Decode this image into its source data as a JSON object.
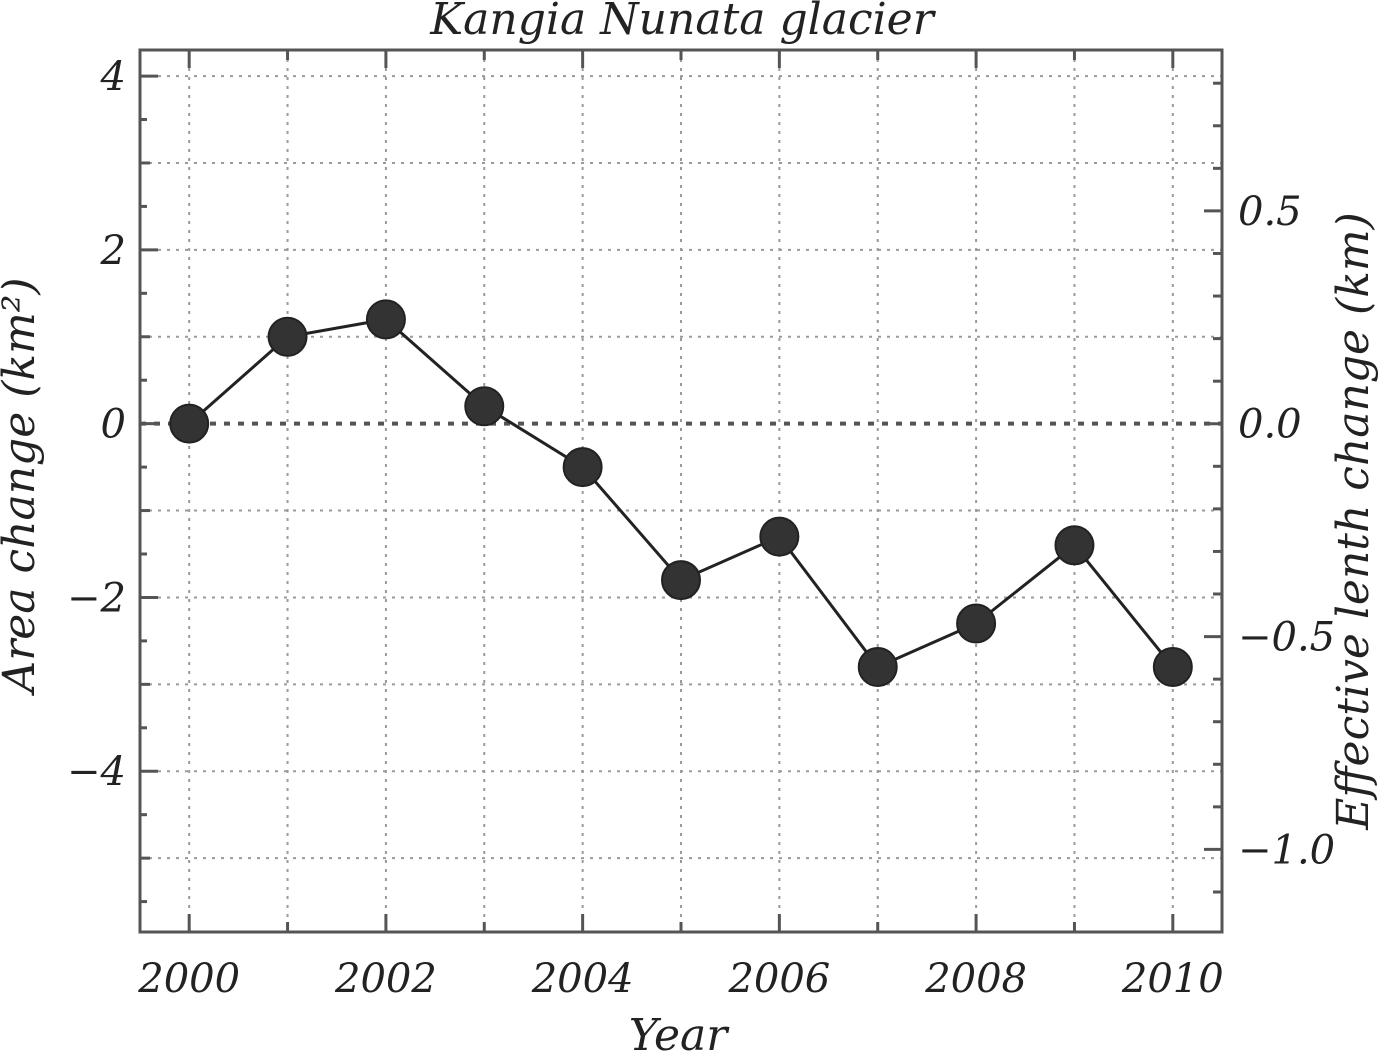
{
  "chart_data": {
    "type": "line",
    "title": "Kangia Nunata glacier",
    "xlabel": "Year",
    "ylabel": "Area change (km²)",
    "ylabel_right": "Effective lenth change (km)",
    "xlim": [
      1999.5,
      2010.5
    ],
    "ylim": [
      -5.85,
      4.3
    ],
    "ylim_right": [
      -1.194,
      0.878
    ],
    "x_ticks": [
      2000,
      2002,
      2004,
      2006,
      2008,
      2010
    ],
    "x_tick_labels": [
      "2000",
      "2002",
      "2004",
      "2006",
      "2008",
      "2010"
    ],
    "y_ticks": [
      4,
      2,
      0,
      -2,
      -4
    ],
    "y_tick_labels": [
      "4",
      "2",
      "0",
      "−2",
      "−4"
    ],
    "y_ticks_right": [
      0.5,
      0.0,
      -0.5,
      -1.0
    ],
    "y_tick_labels_right": [
      "0.5",
      "0.0",
      "−0.5",
      "−1.0"
    ],
    "grid": true,
    "zero_line": true,
    "series": [
      {
        "x": [
          2000,
          2001,
          2002,
          2003,
          2004,
          2005,
          2006,
          2007,
          2008,
          2009,
          2010
        ],
        "y": [
          0.0,
          1.0,
          1.2,
          0.2,
          -0.5,
          -1.8,
          -1.3,
          -2.8,
          -2.3,
          -1.4,
          -2.8
        ]
      }
    ]
  }
}
